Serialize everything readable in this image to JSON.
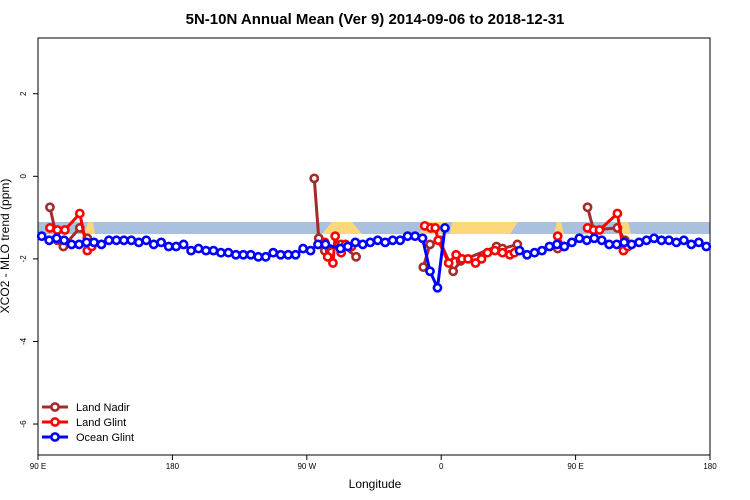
{
  "chart_data": {
    "type": "line",
    "title": "5N-10N Annual Mean (Ver 9)   2014-09-06 to 2018-12-31",
    "x_label": "Longitude",
    "y_label": "XCO2 - MLO trend (ppm)",
    "xlim": [
      -270,
      180
    ],
    "ylim": [
      -6.75,
      3.35
    ],
    "xticks": [
      {
        "value": -270,
        "label": "90 E"
      },
      {
        "value": -180,
        "label": "180"
      },
      {
        "value": -90,
        "label": "90 W"
      },
      0,
      {
        "value": 90,
        "label": "90 E"
      },
      180
    ],
    "yticks": [
      -6,
      -4,
      -2,
      0,
      2
    ],
    "legend": "bottom-left",
    "series": [
      {
        "name": "Land Nadir",
        "color": "#a52a2a",
        "x": [
          -262,
          -257,
          -253,
          -242,
          -237,
          null,
          -85,
          -82,
          -78,
          -67,
          -57,
          null,
          -12,
          -7.5,
          -1,
          8,
          13,
          37,
          41,
          51,
          null,
          78,
          null,
          98,
          102,
          118,
          123
        ],
        "values": [
          -0.75,
          -1.55,
          -1.7,
          -1.25,
          -1.5,
          null,
          -0.05,
          -1.5,
          -1.8,
          -1.65,
          -1.95,
          null,
          -2.2,
          -1.65,
          -1.55,
          -2.3,
          -2.05,
          -1.7,
          -1.75,
          -1.65,
          null,
          -1.75,
          null,
          -0.75,
          -1.3,
          -1.25,
          -1.55
        ]
      },
      {
        "name": "Land Glint",
        "color": "#ff0000",
        "x": [
          -262,
          -257,
          -252,
          -242,
          -237,
          -234,
          null,
          -78,
          -76,
          -72.5,
          -71,
          -67,
          -64,
          -60,
          null,
          -11,
          -7,
          -4,
          -2,
          5,
          10,
          14,
          18,
          23,
          27,
          31,
          36,
          41,
          46,
          49,
          null,
          78,
          82,
          null,
          98,
          102,
          106,
          118,
          122,
          125
        ],
        "values": [
          -1.25,
          -1.3,
          -1.3,
          -0.9,
          -1.8,
          -1.7,
          null,
          -1.6,
          -1.95,
          -2.1,
          -1.45,
          -1.85,
          -1.65,
          -1.7,
          null,
          -1.2,
          -1.25,
          -1.25,
          -1.55,
          -2.1,
          -1.9,
          -2.0,
          -2.0,
          -2.1,
          -2.0,
          -1.85,
          -1.8,
          -1.85,
          -1.9,
          -1.85,
          null,
          -1.45,
          -1.7,
          null,
          -1.25,
          -1.3,
          -1.3,
          -0.9,
          -1.8,
          -1.7
        ]
      },
      {
        "name": "Ocean Glint",
        "color": "#0000ff",
        "x": [
          -267.5,
          -262.5,
          -257.5,
          -252.5,
          -247.5,
          -242.5,
          -237.5,
          -232.5,
          -227.5,
          -222.5,
          -217.5,
          -212.5,
          -207.5,
          -202.5,
          -197.5,
          -192.5,
          -187.5,
          -182.5,
          -177.5,
          -172.5,
          -167.5,
          -162.5,
          -157.5,
          -152.5,
          -147.5,
          -142.5,
          -137.5,
          -132.5,
          -127.5,
          -122.5,
          -117.5,
          -112.5,
          -107.5,
          -102.5,
          -97.5,
          -92.5,
          -87.5,
          -82.5,
          -77.5,
          -67.5,
          -62.5,
          -57.5,
          -52.5,
          -47.5,
          -42.5,
          -37.5,
          -32.5,
          -27.5,
          -22.5,
          -17.5,
          -12.5,
          -7.5,
          -2.5,
          2.5,
          null,
          52.5,
          57.5,
          62.5,
          67.5,
          72.5,
          77.5,
          82.5,
          87.5,
          92.5,
          97.5,
          102.5,
          107.5,
          112.5,
          117.5,
          122.5,
          127.5,
          132.5,
          137.5,
          142.5,
          147.5,
          152.5,
          157.5,
          162.5,
          167.5,
          172.5,
          177.5
        ],
        "values": [
          -1.45,
          -1.55,
          -1.5,
          -1.55,
          -1.65,
          -1.65,
          -1.6,
          -1.6,
          -1.65,
          -1.55,
          -1.55,
          -1.55,
          -1.55,
          -1.6,
          -1.55,
          -1.65,
          -1.6,
          -1.7,
          -1.7,
          -1.65,
          -1.8,
          -1.75,
          -1.8,
          -1.8,
          -1.85,
          -1.85,
          -1.9,
          -1.9,
          -1.9,
          -1.95,
          -1.95,
          -1.85,
          -1.9,
          -1.9,
          -1.9,
          -1.75,
          -1.8,
          -1.65,
          -1.65,
          -1.75,
          -1.7,
          -1.6,
          -1.65,
          -1.6,
          -1.55,
          -1.6,
          -1.55,
          -1.55,
          -1.45,
          -1.45,
          -1.5,
          -2.3,
          -2.7,
          -1.25,
          null,
          -1.8,
          -1.9,
          -1.85,
          -1.8,
          -1.7,
          -1.65,
          -1.7,
          -1.6,
          -1.5,
          -1.55,
          -1.5,
          -1.55,
          -1.65,
          -1.65,
          -1.6,
          -1.65,
          -1.6,
          -1.55,
          -1.5,
          -1.55,
          -1.55,
          -1.6,
          -1.55,
          -1.65,
          -1.6,
          -1.7
        ]
      }
    ]
  }
}
